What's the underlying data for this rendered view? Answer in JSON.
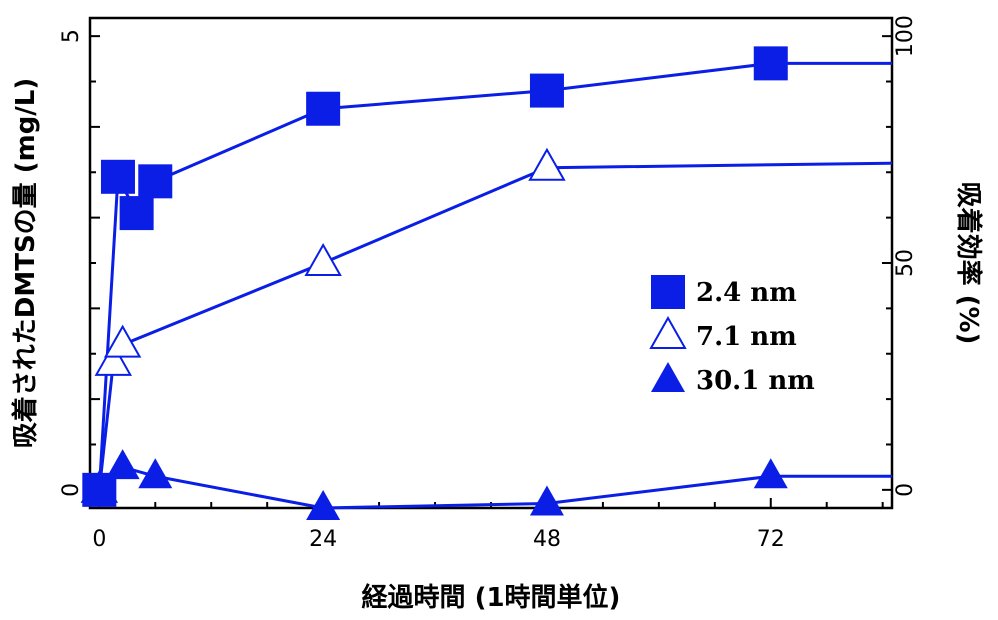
{
  "chart_data": {
    "type": "line",
    "xlabel": "経過時間 (1時間単位)",
    "ylabel": "吸着されたDMTSの量 (mg/L)",
    "y2label": "吸着効率 (%)",
    "xlim": [
      -1,
      85
    ],
    "ylim": [
      -0.2,
      5.2
    ],
    "y2lim": [
      -4,
      104
    ],
    "x_ticks": [
      "0",
      "24",
      "48",
      "72"
    ],
    "y_ticks": [
      "0",
      "5"
    ],
    "y2_ticks": [
      "0",
      "50",
      "100"
    ],
    "grid": false,
    "legend_position": "right",
    "series": [
      {
        "name": "2.4 nm",
        "marker": "filled-square",
        "color": "#0a1ee6",
        "x": [
          0,
          2,
          4,
          6,
          24,
          48,
          72,
          85
        ],
        "y": [
          0,
          3.45,
          3.05,
          3.4,
          4.2,
          4.4,
          4.7,
          4.7
        ]
      },
      {
        "name": "7.1 nm",
        "marker": "open-triangle",
        "color": "#0a1ee6",
        "x": [
          0,
          1.5,
          2.5,
          24,
          48,
          85
        ],
        "y": [
          0,
          1.4,
          1.6,
          2.5,
          3.55,
          3.6
        ]
      },
      {
        "name": "30.1 nm",
        "marker": "filled-triangle",
        "color": "#0a1ee6",
        "x": [
          0,
          2.5,
          6,
          24,
          48,
          72,
          85
        ],
        "y": [
          0,
          0.25,
          0.15,
          -0.2,
          -0.15,
          0.15,
          0.15
        ]
      }
    ]
  }
}
